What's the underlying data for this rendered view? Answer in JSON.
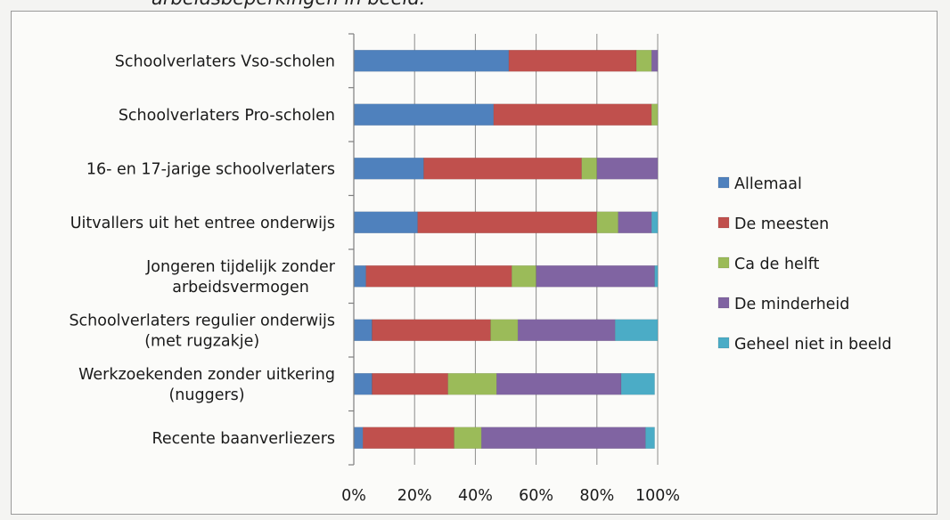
{
  "caption": "arbeidsbeperkingen in beeld.",
  "chart_data": {
    "type": "bar",
    "orientation": "horizontal",
    "stacked": true,
    "categories": [
      "Schoolverlaters Vso-scholen",
      "Schoolverlaters Pro-scholen",
      "16- en 17-jarige schoolverlaters",
      "Uitvallers uit het entree onderwijs",
      "Jongeren tijdelijk zonder arbeidsvermogen",
      "Schoolverlaters regulier onderwijs (met rugzakje)",
      "Werkzoekenden zonder uitkering (nuggers)",
      "Recente baanverliezers"
    ],
    "category_lines": [
      [
        "Schoolverlaters Vso-scholen"
      ],
      [
        "Schoolverlaters Pro-scholen"
      ],
      [
        "16- en 17-jarige schoolverlaters"
      ],
      [
        "Uitvallers uit het entree onderwijs"
      ],
      [
        "Jongeren tijdelijk zonder",
        "arbeidsvermogen"
      ],
      [
        "Schoolverlaters regulier onderwijs",
        "(met rugzakje)"
      ],
      [
        "Werkzoekenden zonder uitkering",
        "(nuggers)"
      ],
      [
        "Recente baanverliezers"
      ]
    ],
    "series": [
      {
        "name": "Allemaal",
        "color": "#4f81bd",
        "values": [
          51,
          46,
          23,
          21,
          4,
          6,
          6,
          3
        ]
      },
      {
        "name": "De meesten",
        "color": "#c0504d",
        "values": [
          42,
          52,
          52,
          59,
          48,
          39,
          25,
          30
        ]
      },
      {
        "name": "Ca de helft",
        "color": "#9bbb59",
        "values": [
          5,
          2,
          5,
          7,
          8,
          9,
          16,
          9
        ]
      },
      {
        "name": "De minderheid",
        "color": "#8064a2",
        "values": [
          2,
          0,
          20,
          11,
          39,
          32,
          41,
          54
        ]
      },
      {
        "name": "Geheel niet in beeld",
        "color": "#4bacc6",
        "values": [
          0,
          0,
          0,
          2,
          1,
          14,
          11,
          3
        ]
      }
    ],
    "x_ticks": [
      "0%",
      "20%",
      "40%",
      "60%",
      "80%",
      "100%"
    ],
    "xlim": [
      0,
      100
    ],
    "grid": true,
    "legend_position": "right"
  }
}
